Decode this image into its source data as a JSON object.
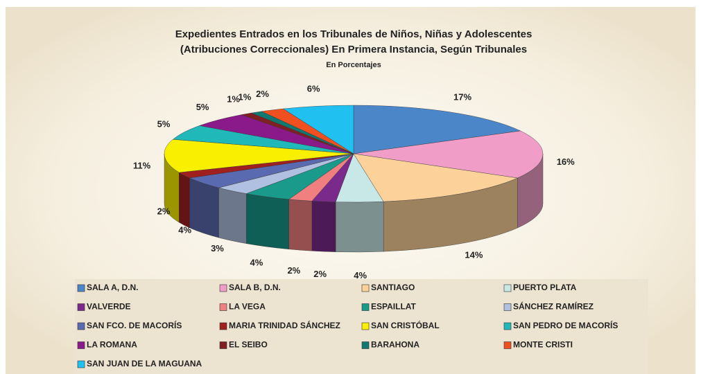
{
  "chart_data": {
    "type": "pie",
    "title": "Expedientes Entrados en los Tribunales de Niños, Niñas y Adolescentes",
    "title2": "(Atribuciones Correccionales) En Primera Instancia, Según Tribunales",
    "subtitle": "En Porcentajes",
    "categories": [
      "SALA A, D.N.",
      "SALA B, D.N.",
      "SANTIAGO",
      "PUERTO PLATA",
      "VALVERDE",
      "LA VEGA",
      "ESPAILLAT",
      "SÁNCHEZ RAMÍREZ",
      "SAN FCO. DE MACORÍS",
      "MARIA TRINIDAD SÁNCHEZ",
      "SAN CRISTÓBAL",
      "SAN PEDRO DE MACORÍS",
      "LA ROMANA",
      "EL SEIBO",
      "BARAHONA",
      "MONTE CRISTI",
      "SAN JUAN DE LA MAGUANA"
    ],
    "values": [
      17,
      16,
      14,
      4,
      2,
      2,
      4,
      3,
      4,
      2,
      11,
      5,
      5,
      1,
      1,
      2,
      6
    ],
    "value_labels": [
      "17%",
      "16%",
      "14%",
      "4%",
      "2%",
      "2%",
      "4%",
      "3%",
      "4%",
      "2%",
      "11%",
      "5%",
      "5%",
      "1%",
      "1%",
      "2%",
      "6%"
    ],
    "colors": [
      "#4a86c8",
      "#f09ec8",
      "#fcd29a",
      "#c8e8e8",
      "#7a2a8a",
      "#f08080",
      "#1a9a8a",
      "#b0c0e0",
      "#5a6ab0",
      "#a02020",
      "#f8f000",
      "#20b8b8",
      "#8a1a8a",
      "#802020",
      "#107870",
      "#f05020",
      "#20c0f0"
    ],
    "legend": "bottom"
  }
}
